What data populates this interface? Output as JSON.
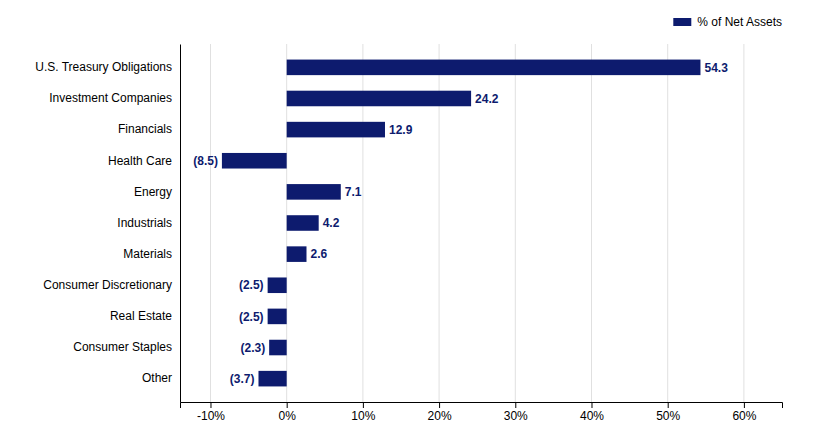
{
  "chart_data": {
    "type": "bar",
    "orientation": "horizontal",
    "categories": [
      "U.S. Treasury Obligations",
      "Investment Companies",
      "Financials",
      "Health Care",
      "Energy",
      "Industrials",
      "Materials",
      "Consumer Discretionary",
      "Real Estate",
      "Consumer Staples",
      "Other"
    ],
    "series": [
      {
        "name": "% of Net Assets",
        "color": "#0d1b6e",
        "values": [
          54.3,
          24.2,
          12.9,
          -8.5,
          7.1,
          4.2,
          2.6,
          -2.5,
          -2.5,
          -2.3,
          -3.7
        ],
        "value_labels": [
          "54.3",
          "24.2",
          "12.9",
          "(8.5)",
          "7.1",
          "4.2",
          "2.6",
          "(2.5)",
          "(2.5)",
          "(2.3)",
          "(3.7)"
        ]
      }
    ],
    "xlim": [
      -14,
      65
    ],
    "xticks": [
      {
        "value": -10,
        "label": "-10%"
      },
      {
        "value": 0,
        "label": "0%"
      },
      {
        "value": 10,
        "label": "10%"
      },
      {
        "value": 20,
        "label": "20%"
      },
      {
        "value": 30,
        "label": "30%"
      },
      {
        "value": 40,
        "label": "40%"
      },
      {
        "value": 50,
        "label": "50%"
      },
      {
        "value": 60,
        "label": "60%"
      }
    ],
    "grid": true,
    "legend": "upper right",
    "data_labels": true
  }
}
